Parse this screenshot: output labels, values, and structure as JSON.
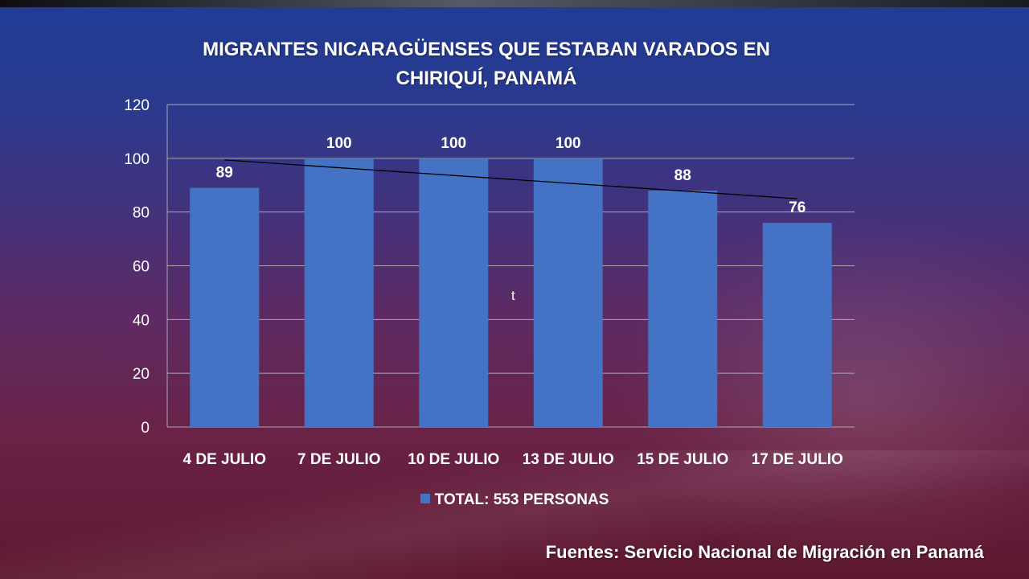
{
  "slide": {
    "title_line1": "MIGRANTES NICARAGÜENSES QUE ESTABAN VARADOS EN",
    "title_line2": "CHIRIQUÍ, PANAMÁ",
    "stray_text": "t",
    "source": "Fuentes: Servicio Nacional de Migración en Panamá"
  },
  "chart_data": {
    "type": "bar",
    "title": "MIGRANTES NICARAGÜENSES QUE ESTABAN VARADOS EN CHIRIQUÍ, PANAMÁ",
    "categories": [
      "4 DE JULIO",
      "7 DE JULIO",
      "10 DE JULIO",
      "13 DE JULIO",
      "15 DE JULIO",
      "17 DE JULIO"
    ],
    "series": [
      {
        "name": "TOTAL: 553 PERSONAS",
        "values": [
          89,
          100,
          100,
          100,
          88,
          76
        ]
      }
    ],
    "data_labels": [
      "89",
      "100",
      "100",
      "100",
      "88",
      "76"
    ],
    "ylim": [
      0,
      120
    ],
    "yticks": [
      0,
      20,
      40,
      60,
      80,
      100,
      120
    ],
    "grid": true,
    "trendline": "linear",
    "legend_position": "bottom",
    "colors": {
      "bar": "#4472c4",
      "grid": "#a9a9b4",
      "trendline": "#000000",
      "text": "#ffffff"
    }
  }
}
